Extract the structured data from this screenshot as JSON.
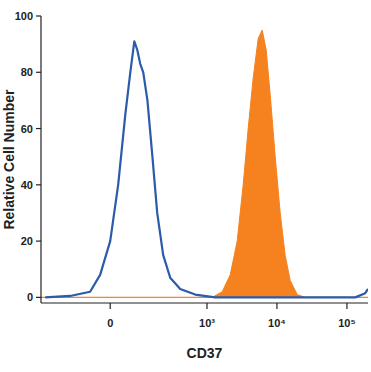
{
  "chart_data": {
    "type": "area",
    "xlabel": "CD37",
    "ylabel": "Relative Cell Number",
    "log": "x",
    "xlim": [
      -400,
      200000
    ],
    "xticks": [
      0,
      {
        "value": 1000,
        "label": "10³"
      },
      {
        "value": 10000,
        "label": "10⁴"
      },
      {
        "value": 100000,
        "label": "10⁵"
      }
    ],
    "ylim": [
      -2,
      100
    ],
    "yticks": [
      0,
      20,
      40,
      60,
      80,
      100
    ],
    "series": [
      {
        "type": "line",
        "color": "#2b5ba9",
        "x": [
          -347,
          -144,
          -59,
          -28,
          0,
          22,
          43,
          59,
          73,
          84,
          96,
          109,
          129,
          156,
          186,
          230,
          293,
          411,
          677,
          1311,
          21500,
          131600,
          182600,
          200000
        ],
        "values": [
          0,
          0.5,
          2,
          8,
          20,
          40,
          65,
          80,
          91,
          88,
          83,
          80,
          70,
          50,
          30,
          15,
          7,
          3,
          1,
          0,
          0,
          0,
          1.5,
          3
        ]
      },
      {
        "type": "area",
        "color": "#f5821f",
        "x": [
          -400,
          1188,
          1651,
          2150,
          2706,
          3295,
          3884,
          4582,
          5400,
          6160,
          7020,
          8010,
          9450,
          11130,
          13110,
          15470,
          19470,
          25300,
          200000
        ],
        "values": [
          0,
          0,
          2,
          8,
          20,
          40,
          60,
          78,
          92,
          95,
          88,
          72,
          50,
          30,
          15,
          6,
          1,
          0,
          0
        ]
      }
    ]
  }
}
